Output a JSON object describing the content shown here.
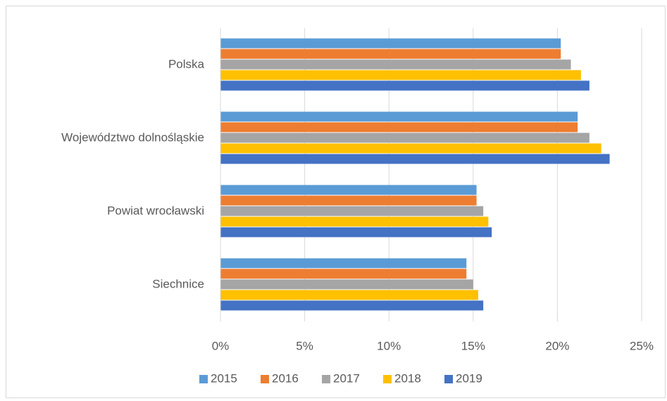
{
  "chart_data": {
    "type": "bar",
    "orientation": "horizontal",
    "categories": [
      "Polska",
      "Województwo dolnośląskie",
      "Powiat wrocławski",
      "Siechnice"
    ],
    "series": [
      {
        "name": "2015",
        "color": "#5b9bd5",
        "values": [
          20.2,
          21.2,
          15.2,
          14.6
        ]
      },
      {
        "name": "2016",
        "color": "#ed7d31",
        "values": [
          20.2,
          21.2,
          15.2,
          14.6
        ]
      },
      {
        "name": "2017",
        "color": "#a5a5a5",
        "values": [
          20.8,
          21.9,
          15.6,
          15.0
        ]
      },
      {
        "name": "2018",
        "color": "#ffc000",
        "values": [
          21.4,
          22.6,
          15.9,
          15.3
        ]
      },
      {
        "name": "2019",
        "color": "#4472c4",
        "values": [
          21.9,
          23.1,
          16.1,
          15.6
        ]
      }
    ],
    "xlim": [
      0,
      25
    ],
    "xticks": [
      {
        "value": 0,
        "label": "0%"
      },
      {
        "value": 5,
        "label": "5%"
      },
      {
        "value": 10,
        "label": "10%"
      },
      {
        "value": 15,
        "label": "15%"
      },
      {
        "value": 20,
        "label": "20%"
      },
      {
        "value": 25,
        "label": "25%"
      }
    ],
    "grid": true,
    "legend": "bottom"
  }
}
